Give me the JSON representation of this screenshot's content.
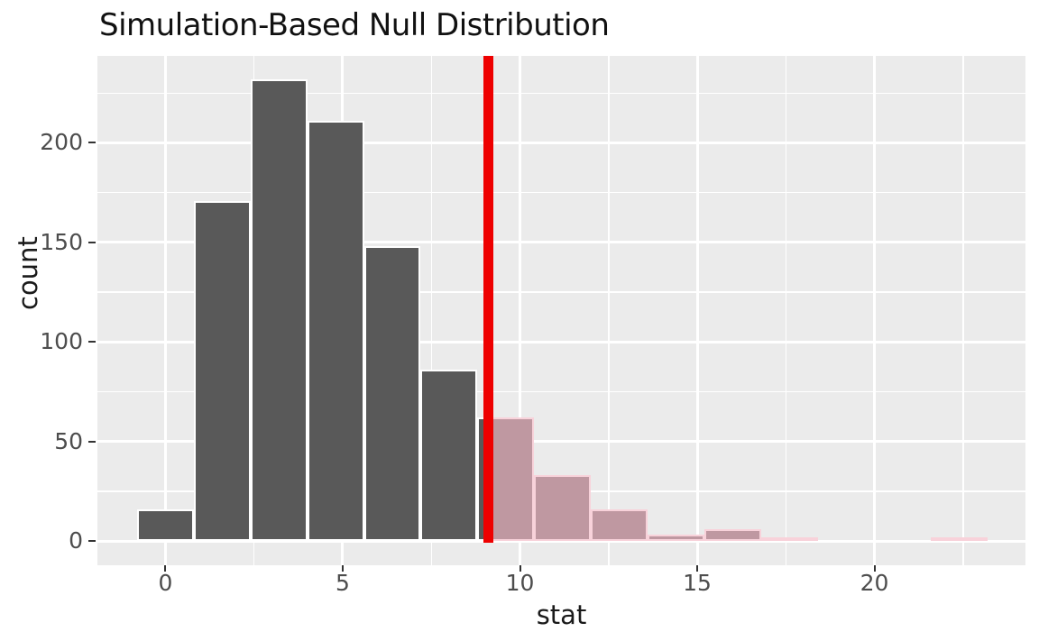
{
  "title": "Simulation-Based Null Distribution",
  "axes": {
    "x": {
      "label": "stat",
      "ticks": [
        0,
        5,
        10,
        15,
        20
      ],
      "minor_ticks": [
        2.5,
        7.5,
        12.5,
        17.5,
        22.5
      ],
      "range": [
        -1.92,
        24.26
      ]
    },
    "y": {
      "label": "count",
      "ticks": [
        0,
        50,
        100,
        150,
        200
      ],
      "minor_ticks": [
        25,
        75,
        125,
        175,
        225
      ],
      "range": [
        -12.23,
        243.71
      ]
    }
  },
  "chart_data": {
    "type": "bar",
    "subtype": "histogram",
    "title": "Simulation-Based Null Distribution",
    "xlabel": "stat",
    "ylabel": "count",
    "bin_width": 1.6,
    "bins": [
      {
        "center": 0.0,
        "count": 16
      },
      {
        "center": 1.6,
        "count": 171
      },
      {
        "center": 3.2,
        "count": 232
      },
      {
        "center": 4.8,
        "count": 211
      },
      {
        "center": 6.4,
        "count": 148
      },
      {
        "center": 8.0,
        "count": 86
      },
      {
        "center": 9.6,
        "count": 62
      },
      {
        "center": 11.2,
        "count": 33
      },
      {
        "center": 12.8,
        "count": 16
      },
      {
        "center": 14.4,
        "count": 3
      },
      {
        "center": 16.0,
        "count": 6
      },
      {
        "center": 17.6,
        "count": 2
      },
      {
        "center": 19.2,
        "count": 0
      },
      {
        "center": 20.8,
        "count": 0
      },
      {
        "center": 22.4,
        "count": 2
      }
    ],
    "observed_stat": 9.1,
    "shaded_region": "right_tail",
    "grid": true,
    "legend": false
  },
  "colors": {
    "panel_bg": "#ebebeb",
    "grid": "#ffffff",
    "bar_fill": "#595959",
    "bar_stroke": "#ffffff",
    "shaded_bar_fill": "#bf98a1",
    "shaded_bar_stroke": "#f8d2da",
    "obs_line": "#ee0000",
    "tick_mark": "#333333",
    "tick_label": "#4d4d4d",
    "axis_title": "#1a1a1a"
  }
}
